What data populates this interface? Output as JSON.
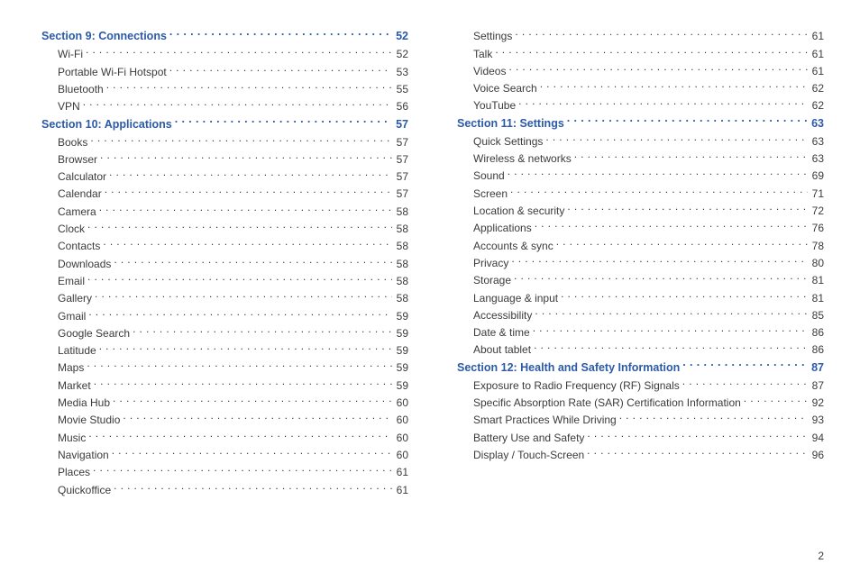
{
  "colors": {
    "section": "#2b5aa8",
    "text": "#3b3b3b",
    "background": "#ffffff"
  },
  "fonts": {
    "family": "Arial, Helvetica, sans-serif",
    "section_size_pt": 12.5,
    "sub_size_pt": 12
  },
  "page_number": "2",
  "columns": [
    [
      {
        "type": "section",
        "label": "Section 9:  Connections",
        "page": "52"
      },
      {
        "type": "sub",
        "label": "Wi-Fi",
        "page": "52"
      },
      {
        "type": "sub",
        "label": "Portable Wi-Fi Hotspot",
        "page": "53"
      },
      {
        "type": "sub",
        "label": "Bluetooth",
        "page": "55"
      },
      {
        "type": "sub",
        "label": "VPN",
        "page": "56"
      },
      {
        "type": "section",
        "label": "Section 10:  Applications",
        "page": "57"
      },
      {
        "type": "sub",
        "label": "Books",
        "page": "57"
      },
      {
        "type": "sub",
        "label": "Browser",
        "page": "57"
      },
      {
        "type": "sub",
        "label": "Calculator",
        "page": "57"
      },
      {
        "type": "sub",
        "label": "Calendar",
        "page": "57"
      },
      {
        "type": "sub",
        "label": "Camera",
        "page": "58"
      },
      {
        "type": "sub",
        "label": "Clock",
        "page": "58"
      },
      {
        "type": "sub",
        "label": "Contacts",
        "page": "58"
      },
      {
        "type": "sub",
        "label": "Downloads",
        "page": "58"
      },
      {
        "type": "sub",
        "label": "Email",
        "page": "58"
      },
      {
        "type": "sub",
        "label": "Gallery",
        "page": "58"
      },
      {
        "type": "sub",
        "label": "Gmail",
        "page": "59"
      },
      {
        "type": "sub",
        "label": "Google Search",
        "page": "59"
      },
      {
        "type": "sub",
        "label": "Latitude",
        "page": "59"
      },
      {
        "type": "sub",
        "label": "Maps",
        "page": "59"
      },
      {
        "type": "sub",
        "label": "Market",
        "page": "59"
      },
      {
        "type": "sub",
        "label": "Media Hub",
        "page": "60"
      },
      {
        "type": "sub",
        "label": "Movie Studio",
        "page": "60"
      },
      {
        "type": "sub",
        "label": "Music",
        "page": "60"
      },
      {
        "type": "sub",
        "label": "Navigation",
        "page": "60"
      },
      {
        "type": "sub",
        "label": "Places",
        "page": "61"
      },
      {
        "type": "sub",
        "label": "Quickoffice",
        "page": "61"
      }
    ],
    [
      {
        "type": "sub",
        "label": "Settings",
        "page": "61"
      },
      {
        "type": "sub",
        "label": "Talk",
        "page": "61"
      },
      {
        "type": "sub",
        "label": "Videos",
        "page": "61"
      },
      {
        "type": "sub",
        "label": "Voice Search",
        "page": "62"
      },
      {
        "type": "sub",
        "label": "YouTube",
        "page": "62"
      },
      {
        "type": "section",
        "label": "Section 11:  Settings",
        "page": "63"
      },
      {
        "type": "sub",
        "label": "Quick Settings",
        "page": "63"
      },
      {
        "type": "sub",
        "label": "Wireless & networks",
        "page": "63"
      },
      {
        "type": "sub",
        "label": "Sound",
        "page": "69"
      },
      {
        "type": "sub",
        "label": "Screen",
        "page": "71"
      },
      {
        "type": "sub",
        "label": "Location & security",
        "page": "72"
      },
      {
        "type": "sub",
        "label": "Applications",
        "page": "76"
      },
      {
        "type": "sub",
        "label": "Accounts & sync",
        "page": "78"
      },
      {
        "type": "sub",
        "label": "Privacy",
        "page": "80"
      },
      {
        "type": "sub",
        "label": "Storage",
        "page": "81"
      },
      {
        "type": "sub",
        "label": "Language & input",
        "page": "81"
      },
      {
        "type": "sub",
        "label": "Accessibility",
        "page": "85"
      },
      {
        "type": "sub",
        "label": "Date & time",
        "page": "86"
      },
      {
        "type": "sub",
        "label": "About tablet",
        "page": "86"
      },
      {
        "type": "section",
        "label": "Section 12:  Health and Safety Information",
        "page": "87"
      },
      {
        "type": "sub",
        "label": "Exposure to Radio Frequency (RF) Signals",
        "page": "87"
      },
      {
        "type": "sub",
        "label": "Specific Absorption Rate (SAR) Certification Information",
        "page": "92"
      },
      {
        "type": "sub",
        "label": "Smart Practices While Driving",
        "page": "93"
      },
      {
        "type": "sub",
        "label": "Battery Use and Safety",
        "page": "94"
      },
      {
        "type": "sub",
        "label": "Display / Touch-Screen",
        "page": "96"
      }
    ]
  ]
}
